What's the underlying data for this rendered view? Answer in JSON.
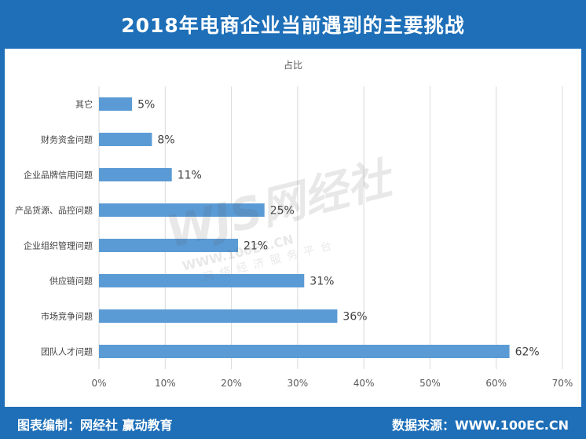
{
  "title": "2018年电商企业当前遇到的主要挑战",
  "footer": {
    "left": "图表编制：网经社 赢动教育",
    "right": "数据来源：WWW.100EC.CN"
  },
  "watermark": {
    "logo": "WJS网经社",
    "url": "WWW.100EC.CN",
    "sub": "网络经济服务平台"
  },
  "chart_data": {
    "type": "bar",
    "orientation": "horizontal",
    "title": "占比",
    "categories": [
      "其它",
      "财务资金问题",
      "企业品牌信用问题",
      "产品货源、品控问题",
      "企业组织管理问题",
      "供应链问题",
      "市场竞争问题",
      "团队人才问题"
    ],
    "values": [
      5,
      8,
      11,
      25,
      21,
      31,
      36,
      62
    ],
    "data_labels": [
      "5%",
      "8%",
      "11%",
      "25%",
      "21%",
      "31%",
      "36%",
      "62%"
    ],
    "xlim": [
      0,
      70
    ],
    "x_ticks": [
      0,
      10,
      20,
      30,
      40,
      50,
      60,
      70
    ],
    "x_tick_labels": [
      "0%",
      "10%",
      "20%",
      "30%",
      "40%",
      "50%",
      "60%",
      "70%"
    ],
    "grid": "vertical",
    "bar_color": "#5b9bd5"
  }
}
